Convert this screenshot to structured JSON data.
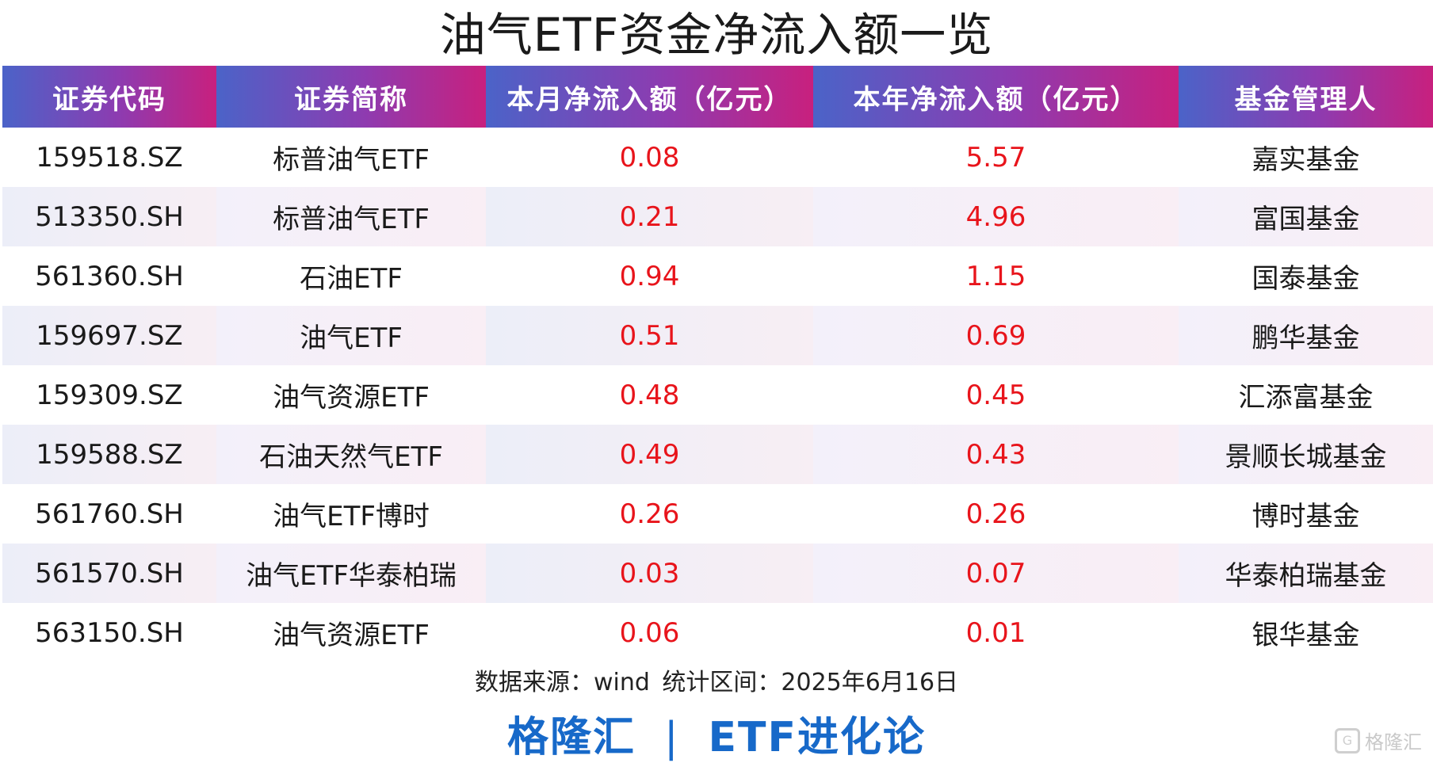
{
  "title": "油气ETF资金净流入额一览",
  "headers": [
    "证券代码",
    "证券简称",
    "本月净流入额（亿元）",
    "本年净流入额（亿元）",
    "基金管理人"
  ],
  "rows": [
    {
      "code": "159518.SZ",
      "name": "标普油气ETF",
      "month": "0.08",
      "year": "5.57",
      "manager": "嘉实基金"
    },
    {
      "code": "513350.SH",
      "name": "标普油气ETF",
      "month": "0.21",
      "year": "4.96",
      "manager": "富国基金"
    },
    {
      "code": "561360.SH",
      "name": "石油ETF",
      "month": "0.94",
      "year": "1.15",
      "manager": "国泰基金"
    },
    {
      "code": "159697.SZ",
      "name": "油气ETF",
      "month": "0.51",
      "year": "0.69",
      "manager": "鹏华基金"
    },
    {
      "code": "159309.SZ",
      "name": "油气资源ETF",
      "month": "0.48",
      "year": "0.45",
      "manager": "汇添富基金"
    },
    {
      "code": "159588.SZ",
      "name": "石油天然气ETF",
      "month": "0.49",
      "year": "0.43",
      "manager": "景顺长城基金"
    },
    {
      "code": "561760.SH",
      "name": "油气ETF博时",
      "month": "0.26",
      "year": "0.26",
      "manager": "博时基金"
    },
    {
      "code": "561570.SH",
      "name": "油气ETF华泰柏瑞",
      "month": "0.03",
      "year": "0.07",
      "manager": "华泰柏瑞基金"
    },
    {
      "code": "563150.SH",
      "name": "油气资源ETF",
      "month": "0.06",
      "year": "0.01",
      "manager": "银华基金"
    }
  ],
  "source_text": "数据来源：wind   统计区间：2025年6月16日",
  "footer": {
    "left": "格隆汇",
    "separator": "|",
    "right": "ETF进化论"
  },
  "watermark": {
    "icon": "G",
    "text": "格隆汇",
    "icon_name": "gelonghui-logo-icon"
  },
  "colors": {
    "header_start": "#4b63c8",
    "header_end": "#c8207e",
    "value_red": "#e8141b",
    "footer_blue": "#1769c9"
  }
}
